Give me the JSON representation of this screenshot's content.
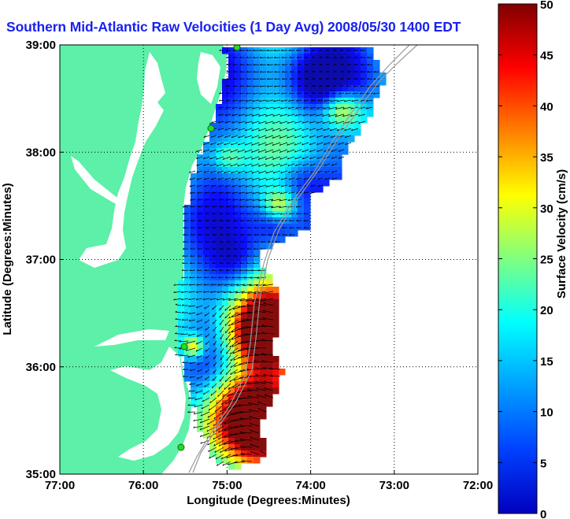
{
  "chart_data": {
    "type": "heatmap",
    "title": "Southern Mid-Atlantic Raw Velocities (1 Day Avg) 2008/05/30 1400 EDT",
    "xlabel": "Longitude (Degrees:Minutes)",
    "ylabel": "Latitude (Degrees:Minutes)",
    "colorbar_label": "Surface Velocity (cm/s)",
    "x_ticks": [
      "77:00",
      "76:00",
      "75:00",
      "74:00",
      "73:00",
      "72:00"
    ],
    "y_ticks": [
      "39:00",
      "38:00",
      "37:00",
      "36:00",
      "35:00"
    ],
    "colorbar_ticks": [
      "0",
      "5",
      "10",
      "15",
      "20",
      "25",
      "30",
      "35",
      "40",
      "45",
      "50"
    ],
    "xlim": [
      -77,
      -72
    ],
    "ylim": [
      35,
      39
    ],
    "clim": [
      0,
      50
    ],
    "grid": true,
    "colormap": "jet",
    "land_color": "#5cf0a8",
    "title_color": "#1a22ee"
  }
}
